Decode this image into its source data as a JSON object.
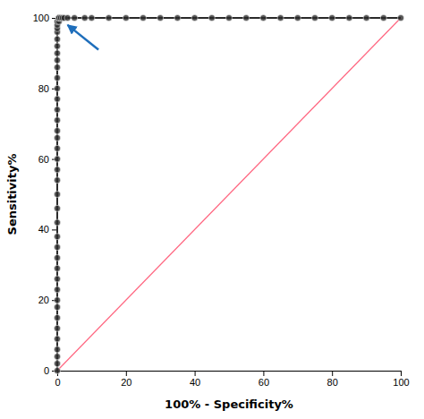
{
  "chart_data": {
    "type": "line",
    "xlabel": "100% - Specificity%",
    "ylabel": "Sensitivity%",
    "xlim": [
      0,
      100
    ],
    "ylim": [
      0,
      100
    ],
    "xticks": [
      0,
      20,
      40,
      60,
      80,
      100
    ],
    "yticks": [
      0,
      20,
      40,
      60,
      80,
      100
    ],
    "series": [
      {
        "x": [
          0,
          100
        ],
        "values": [
          0,
          100
        ],
        "color": "#ff6680"
      },
      {
        "x": [
          0,
          0,
          0,
          0,
          0,
          0,
          0,
          0,
          0,
          0,
          0,
          0,
          0,
          0,
          0,
          0,
          0,
          0,
          0,
          0,
          0,
          0,
          0,
          0,
          0,
          0,
          0,
          0,
          0,
          0,
          0,
          0,
          0,
          0,
          0,
          0,
          0,
          0,
          0.5,
          0.5,
          0.5,
          0.5,
          0.5,
          1.0,
          1.5,
          2.0,
          3.0,
          5.0,
          8.0,
          10.0,
          15.0,
          20.0,
          25.0,
          30.0,
          35.0,
          40.0,
          45.0,
          50.0,
          55.0,
          60.0,
          65.0,
          70.0,
          75.0,
          80.0,
          85.0,
          90.0,
          95.0,
          100.0
        ],
        "values": [
          0,
          2,
          4,
          6,
          9,
          12,
          15,
          18,
          20,
          23,
          26,
          29,
          32,
          35,
          38,
          42,
          46,
          50,
          54,
          57,
          60,
          63,
          66,
          68,
          71,
          74,
          77,
          80,
          83,
          86,
          88,
          90,
          92,
          94,
          96,
          97,
          98,
          99,
          99,
          100,
          100,
          100,
          100,
          100,
          100,
          100,
          100,
          100,
          100,
          100,
          100,
          100,
          100,
          100,
          100,
          100,
          100,
          100,
          100,
          100,
          100,
          100,
          100,
          100,
          100,
          100,
          100,
          100
        ],
        "color": "#2a2a2a",
        "marker": "circle"
      }
    ],
    "annotations": [
      {
        "type": "arrow",
        "x": 3,
        "y": 98,
        "x_from": 12,
        "y_from": 91,
        "color": "#1e6ebb"
      }
    ]
  }
}
